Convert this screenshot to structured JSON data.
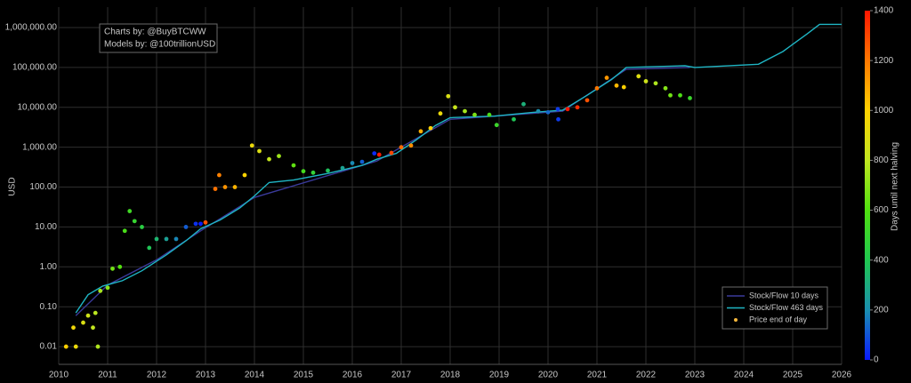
{
  "chart_data": {
    "type": "scatter",
    "y_label": "USD",
    "colorbar_label": "Days until next halving",
    "annotations": [
      "Charts by: @BuyBTCWW",
      "Models by: @100trillionUSD"
    ],
    "log_y": true,
    "grid": true,
    "legend": "bottom right",
    "xlim": [
      2010,
      2026
    ],
    "xticks": [
      2010,
      2011,
      2012,
      2013,
      2014,
      2015,
      2016,
      2017,
      2018,
      2019,
      2020,
      2021,
      2022,
      2023,
      2024,
      2025,
      2026
    ],
    "ylim": [
      0.0036,
      3250000
    ],
    "yticks": [
      {
        "value": 0.01,
        "label": "0.01"
      },
      {
        "value": 0.1,
        "label": "0.10"
      },
      {
        "value": 1,
        "label": "1.00"
      },
      {
        "value": 10,
        "label": "10.00"
      },
      {
        "value": 100,
        "label": "100.00"
      },
      {
        "value": 1000,
        "label": "1,000.00"
      },
      {
        "value": 10000,
        "label": "10,000.00"
      },
      {
        "value": 100000,
        "label": "100,000.00"
      },
      {
        "value": 1000000,
        "label": "1,000,000.00"
      }
    ],
    "clim": [
      0,
      1400
    ],
    "cticks": [
      0,
      200,
      400,
      600,
      800,
      1000,
      1200,
      1400
    ],
    "colorscale": [
      "#0a1aff",
      "#1a8fb0",
      "#20c850",
      "#50e010",
      "#c0e620",
      "#ffd200",
      "#ff7800",
      "#ff1500"
    ],
    "series": [
      {
        "name": "Stock/Flow 10 days",
        "type": "line",
        "color": "#3a3a9a",
        "x": [
          2010.35,
          2011.0,
          2012.0,
          2012.9,
          2014.0,
          2016.5,
          2018.0,
          2020.3,
          2021.6,
          2022.9
        ],
        "values": [
          0.06,
          0.35,
          1.5,
          8,
          55,
          450,
          5000,
          8000,
          90000,
          100000
        ]
      },
      {
        "name": "Stock/Flow 463 days",
        "type": "line",
        "color": "#1fb5c4",
        "x": [
          2010.35,
          2010.6,
          2010.9,
          2011.3,
          2011.7,
          2012.2,
          2012.6,
          2012.9,
          2013.3,
          2013.7,
          2014.0,
          2014.3,
          2014.8,
          2015.5,
          2016.2,
          2016.5,
          2016.9,
          2017.3,
          2017.7,
          2018.0,
          2018.9,
          2019.7,
          2020.3,
          2020.8,
          2021.3,
          2021.6,
          2022.8,
          2023.0,
          2024.3,
          2024.8,
          2025.3,
          2025.55,
          2026.0
        ],
        "values": [
          0.07,
          0.2,
          0.33,
          0.45,
          0.8,
          2,
          4.5,
          9,
          15,
          30,
          60,
          130,
          150,
          220,
          350,
          500,
          700,
          1500,
          3500,
          5500,
          6000,
          7500,
          8500,
          20000,
          50000,
          100000,
          110000,
          100000,
          120000,
          250000,
          700000,
          1200000,
          1200000
        ]
      },
      {
        "name": "Price end of day",
        "type": "scatter",
        "color": "#f5b83d",
        "x": [
          2010.15,
          2010.3,
          2010.35,
          2010.5,
          2010.7,
          2010.8,
          2010.6,
          2010.75,
          2010.85,
          2011.0,
          2011.1,
          2011.25,
          2011.35,
          2011.45,
          2011.55,
          2011.7,
          2011.85,
          2012.0,
          2012.2,
          2012.4,
          2012.6,
          2012.8,
          2012.9,
          2013.0,
          2013.2,
          2013.28,
          2013.4,
          2013.6,
          2013.8,
          2013.95,
          2014.1,
          2014.3,
          2014.5,
          2014.8,
          2015.0,
          2015.2,
          2015.5,
          2015.8,
          2016.0,
          2016.2,
          2016.45,
          2016.55,
          2016.8,
          2017.0,
          2017.2,
          2017.4,
          2017.6,
          2017.8,
          2017.96,
          2018.1,
          2018.3,
          2018.5,
          2018.8,
          2018.95,
          2019.3,
          2019.5,
          2019.8,
          2020.0,
          2020.2,
          2020.21,
          2020.4,
          2020.6,
          2020.8,
          2021.0,
          2021.2,
          2021.4,
          2021.55,
          2021.85,
          2022.0,
          2022.2,
          2022.4,
          2022.5,
          2022.7,
          2022.9
        ],
        "values": [
          0.01,
          0.03,
          0.01,
          0.04,
          0.03,
          0.01,
          0.06,
          0.07,
          0.25,
          0.3,
          0.9,
          1.0,
          8,
          25,
          14,
          10,
          3,
          5,
          5,
          5,
          10,
          12,
          12,
          13,
          90,
          200,
          100,
          100,
          200,
          1100,
          800,
          500,
          600,
          350,
          250,
          230,
          260,
          300,
          400,
          430,
          700,
          650,
          720,
          1000,
          1100,
          2500,
          3000,
          7000,
          19000,
          10000,
          8000,
          6500,
          6500,
          3600,
          5000,
          12000,
          8000,
          7500,
          9000,
          5000,
          9000,
          10000,
          15000,
          30000,
          55000,
          35000,
          32000,
          60000,
          45000,
          40000,
          30000,
          20000,
          20000,
          17000
        ],
        "color_values": [
          1007,
          953,
          934,
          880,
          807,
          770,
          843,
          789,
          752,
          697,
          661,
          606,
          570,
          533,
          496,
          442,
          387,
          332,
          259,
          186,
          113,
          40,
          4,
          1285,
          1212,
          1183,
          1139,
          1066,
          993,
          938,
          884,
          811,
          738,
          628,
          555,
          482,
          372,
          263,
          190,
          117,
          26,
          1391,
          1299,
          1226,
          1153,
          1080,
          1007,
          935,
          876,
          825,
          752,
          679,
          569,
          515,
          387,
          314,
          204,
          131,
          58,
          55,
          1424,
          1351,
          1278,
          1205,
          1132,
          1059,
          1004,
          894,
          840,
          767,
          694,
          657,
          584,
          511
        ]
      }
    ]
  }
}
